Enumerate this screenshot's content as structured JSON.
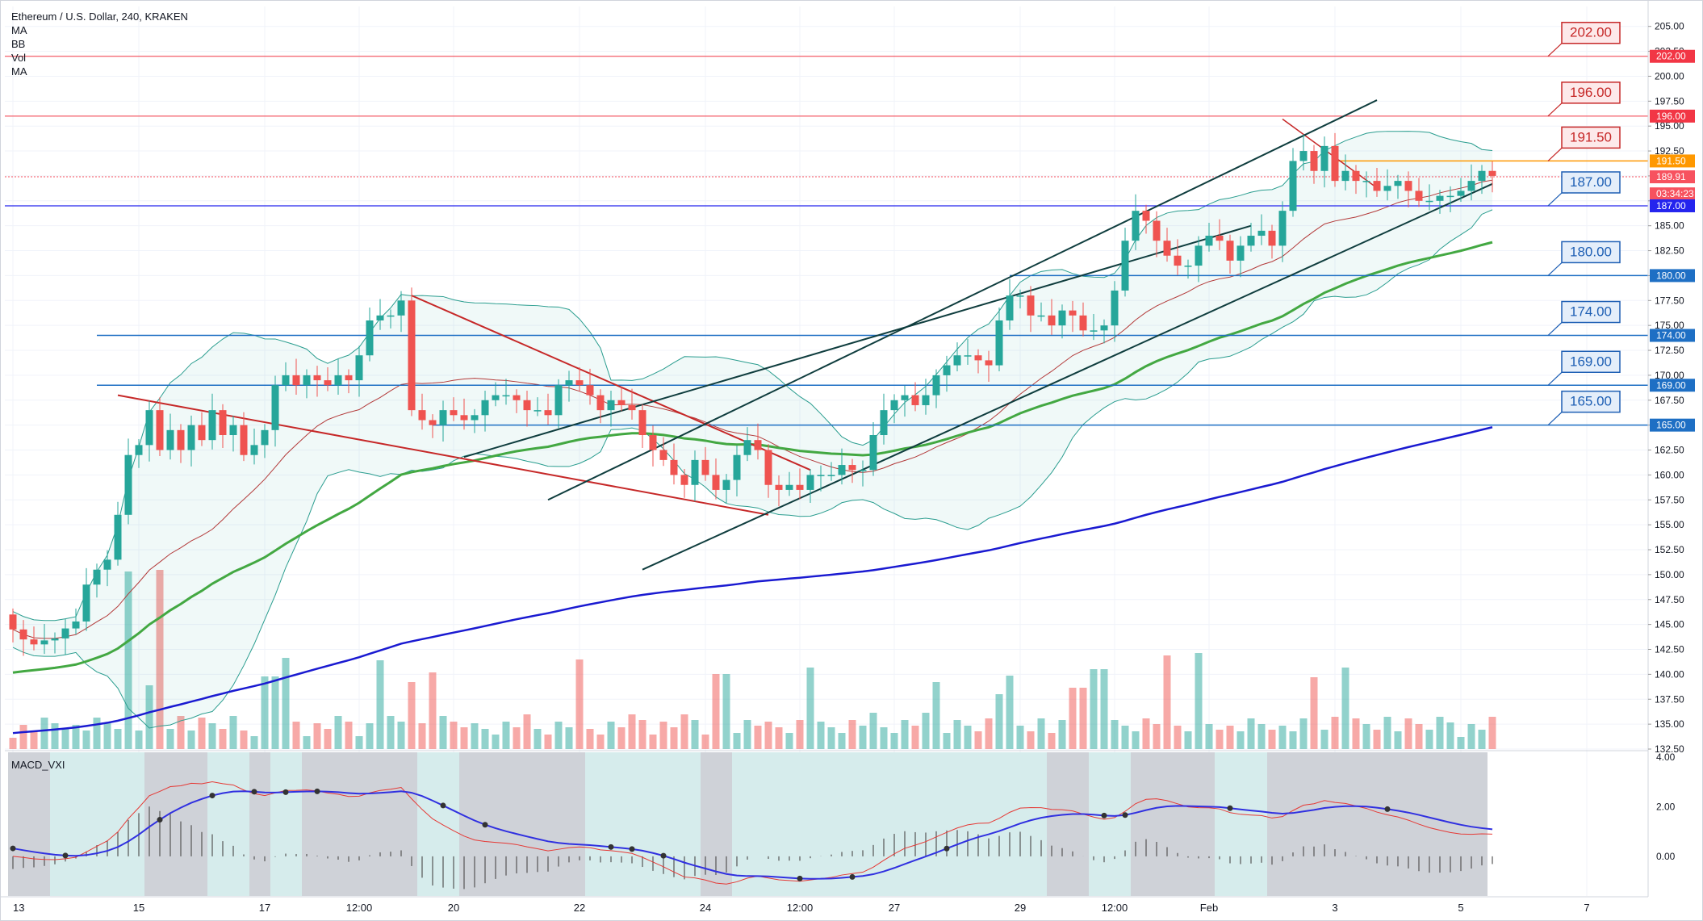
{
  "legend": {
    "title": "Ethereum / U.S. Dollar, 240, KRAKEN",
    "indicators": [
      "MA",
      "BB",
      "Vol",
      "MA"
    ]
  },
  "chart_data": {
    "type": "candlestick",
    "title": "Ethereum / U.S. Dollar, 240, KRAKEN",
    "ylim": [
      132.5,
      207.0
    ],
    "price_ticks": [
      "205.00",
      "202.50",
      "200.00",
      "197.50",
      "195.00",
      "192.50",
      "190.00",
      "187.50",
      "185.00",
      "182.50",
      "180.00",
      "177.50",
      "175.00",
      "172.50",
      "170.00",
      "167.50",
      "165.00",
      "162.50",
      "160.00",
      "157.50",
      "155.00",
      "152.50",
      "150.00",
      "147.50",
      "145.00",
      "142.50",
      "140.00",
      "137.50",
      "135.00",
      "132.50"
    ],
    "time_ticks": [
      {
        "label": "13",
        "x": 0.0
      },
      {
        "label": "15",
        "x": 12.0
      },
      {
        "label": "17",
        "x": 24.0
      },
      {
        "label": "12:00",
        "x": 33.0
      },
      {
        "label": "20",
        "x": 42.0
      },
      {
        "label": "22",
        "x": 54.0
      },
      {
        "label": "24",
        "x": 66.0
      },
      {
        "label": "12:00",
        "x": 75.0
      },
      {
        "label": "27",
        "x": 84.0
      },
      {
        "label": "29",
        "x": 96.0
      },
      {
        "label": "12:00",
        "x": 105.0
      },
      {
        "label": "Feb",
        "x": 114.0
      },
      {
        "label": "3",
        "x": 126.0
      },
      {
        "label": "5",
        "x": 138.0
      },
      {
        "label": "7",
        "x": 150.0
      }
    ],
    "last_bar": 141,
    "close": [
      144.5,
      143.5,
      143.0,
      143.4,
      143.6,
      144.6,
      145.3,
      149.0,
      150.5,
      151.5,
      156.0,
      162.0,
      163.0,
      166.5,
      162.5,
      164.5,
      162.5,
      165.0,
      163.5,
      166.5,
      164.0,
      165.0,
      162.0,
      163.0,
      164.5,
      169.0,
      170.0,
      169.0,
      170.0,
      169.5,
      169.0,
      170.0,
      169.5,
      172.0,
      175.5,
      176.0,
      176.0,
      177.5,
      166.5,
      165.5,
      165.0,
      166.5,
      166.0,
      165.5,
      166.0,
      167.5,
      168.0,
      168.0,
      167.5,
      166.5,
      166.5,
      166.0,
      169.0,
      169.5,
      169.0,
      168.0,
      166.5,
      167.5,
      167.0,
      166.5,
      164.0,
      162.5,
      161.5,
      160.0,
      159.0,
      161.5,
      160.0,
      158.5,
      159.5,
      162.0,
      163.5,
      162.5,
      159.0,
      158.5,
      159.0,
      158.5,
      160.0,
      160.0,
      160.0,
      161.0,
      160.5,
      160.5,
      164.0,
      166.5,
      167.5,
      168.0,
      167.0,
      168.0,
      170.0,
      171.0,
      172.0,
      172.0,
      171.5,
      171.0,
      175.5,
      178.0,
      178.0,
      176.0,
      176.0,
      175.0,
      176.5,
      176.0,
      174.5,
      174.5,
      175.0,
      178.5,
      183.5,
      186.5,
      185.5,
      183.5,
      182.0,
      181.0,
      181.0,
      183.0,
      184.0,
      183.5,
      181.5,
      183.0,
      184.0,
      184.5,
      183.0,
      186.5,
      191.5,
      192.5,
      190.5,
      193.0,
      189.5,
      190.5,
      189.5,
      189.5,
      188.5,
      189.0,
      189.5,
      188.5,
      187.5,
      187.5,
      188.0,
      188.0,
      188.5,
      189.5,
      190.5,
      190.0
    ],
    "range_ticks": [
      {
        "label": "4.00",
        "v": 4.0
      },
      {
        "label": "2.00",
        "v": 2.0
      },
      {
        "label": "0.00",
        "v": 0.0
      }
    ],
    "price_tags": [
      {
        "label": "202.00",
        "price": 202.0,
        "color": "#f23645"
      },
      {
        "label": "196.00",
        "price": 196.0,
        "color": "#f23645"
      },
      {
        "label": "191.50",
        "price": 191.5,
        "color": "#ff9800"
      },
      {
        "label": "189.91",
        "price": 189.91,
        "color": "#f7525f"
      },
      {
        "label": "03:34:23",
        "price": 188.2,
        "color": "#f7525f"
      },
      {
        "label": "187.00",
        "price": 187.0,
        "color": "#2424ee"
      },
      {
        "label": "180.00",
        "price": 180.0,
        "color": "#1e6fc4"
      },
      {
        "label": "174.00",
        "price": 174.0,
        "color": "#1e6fc4"
      },
      {
        "label": "169.00",
        "price": 169.0,
        "color": "#1e6fc4"
      },
      {
        "label": "165.00",
        "price": 165.0,
        "color": "#1e6fc4"
      }
    ],
    "callouts": [
      {
        "label": "202.00",
        "price": 202.0,
        "style": "red"
      },
      {
        "label": "196.00",
        "price": 196.0,
        "style": "red"
      },
      {
        "label": "191.50",
        "price": 191.5,
        "style": "red"
      },
      {
        "label": "187.00",
        "price": 187.0,
        "style": "blue"
      },
      {
        "label": "180.00",
        "price": 180.0,
        "style": "blue"
      },
      {
        "label": "174.00",
        "price": 174.0,
        "style": "blue"
      },
      {
        "label": "169.00",
        "price": 169.0,
        "style": "blue"
      },
      {
        "label": "165.00",
        "price": 165.0,
        "style": "blue"
      }
    ],
    "macd_pane": {
      "label": "MACD_VXI",
      "ylim": [
        -1.6,
        4.2
      ]
    },
    "colors": {
      "up": "#26a69a",
      "down": "#ef5350",
      "red_line": "#f23645",
      "blue_line": "#2962ff",
      "ma_green": "#43a842",
      "ma_blue": "#1a1ad1",
      "channel": "#0f3d3e"
    }
  }
}
